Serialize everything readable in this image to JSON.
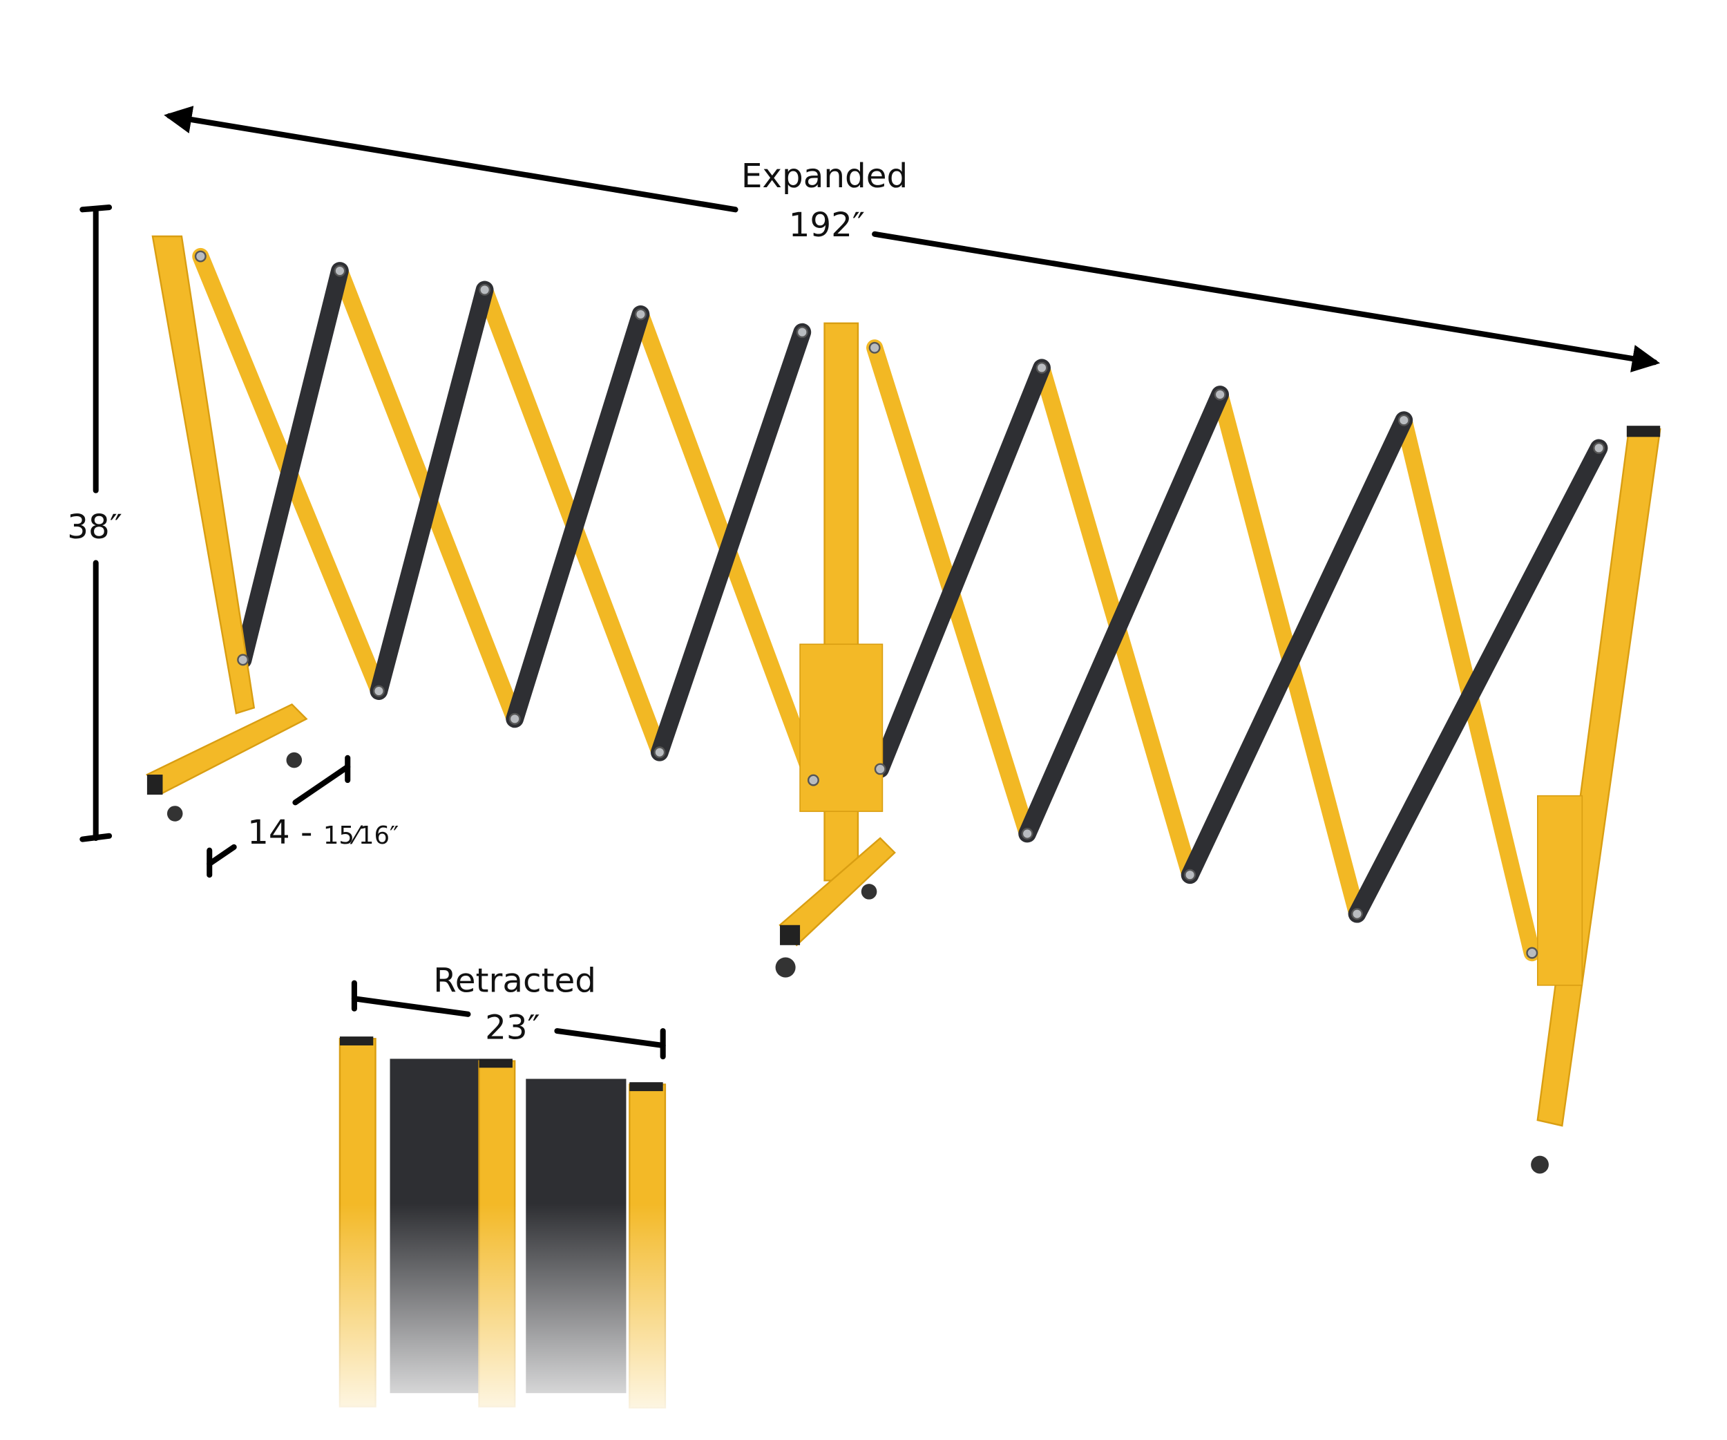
{
  "labels": {
    "expanded_title": "Expanded",
    "expanded_value": "192″",
    "height_value": "38″",
    "base_whole": "14 - ",
    "base_fraction": "15⁄16″",
    "retracted_title": "Retracted",
    "retracted_value": "23″"
  },
  "colors": {
    "barrier_yellow": "#f3b927",
    "barrier_black": "#2e2f33",
    "dimension_lines": "#000000"
  }
}
